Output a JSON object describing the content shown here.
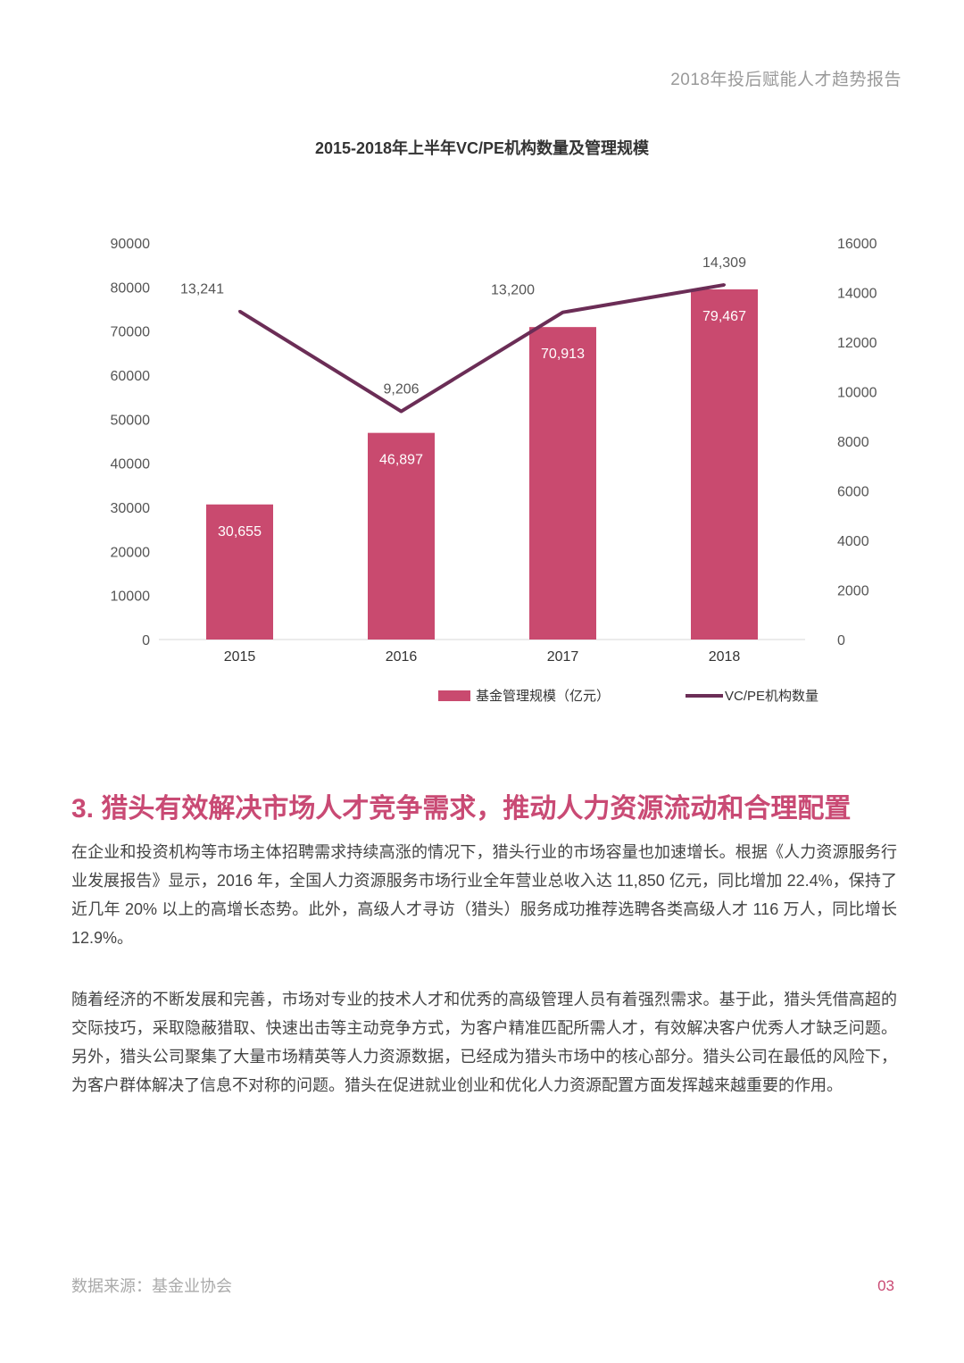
{
  "header": {
    "report_title": "2018年投后赋能人才趋势报告"
  },
  "chart_data": {
    "type": "bar",
    "title": "2015-2018年上半年VC/PE机构数量及管理规模",
    "categories": [
      "2015",
      "2016",
      "2017",
      "2018"
    ],
    "series": [
      {
        "name": "基金管理规模（亿元）",
        "type": "bar",
        "axis": "left",
        "values": [
          30655,
          46897,
          70913,
          79467
        ],
        "labels": [
          "30,655",
          "46,897",
          "70,913",
          "79,467"
        ]
      },
      {
        "name": "VC/PE机构数量",
        "type": "line",
        "axis": "right",
        "values": [
          13241,
          9206,
          13200,
          14309
        ],
        "labels": [
          "13,241",
          "9,206",
          "13,200",
          "14,309"
        ]
      }
    ],
    "ylim_left": [
      0,
      90000
    ],
    "yticks_left": [
      "0",
      "10000",
      "20000",
      "30000",
      "40000",
      "50000",
      "60000",
      "70000",
      "80000",
      "90000"
    ],
    "ylim_right": [
      0,
      16000
    ],
    "yticks_right": [
      "0",
      "2000",
      "4000",
      "6000",
      "8000",
      "10000",
      "12000",
      "14000",
      "16000"
    ],
    "legend_position": "bottom",
    "grid": false,
    "colors": {
      "bar": "#c94a6f",
      "line": "#6b2d56",
      "axis_text": "#555555"
    }
  },
  "section": {
    "heading": "3. 猎头有效解决市场人才竞争需求，推动人力资源流动和合理配置",
    "paragraph1": "在企业和投资机构等市场主体招聘需求持续高涨的情况下，猎头行业的市场容量也加速增长。根据《人力资源服务行业发展报告》显示，2016 年，全国人力资源服务市场行业全年营业总收入达 11,850 亿元，同比增加 22.4%，保持了近几年 20% 以上的高增长态势。此外，高级人才寻访（猎头）服务成功推荐选聘各类高级人才 116 万人，同比增长 12.9%。",
    "paragraph2": "随着经济的不断发展和完善，市场对专业的技术人才和优秀的高级管理人员有着强烈需求。基于此，猎头凭借高超的交际技巧，采取隐蔽猎取、快速出击等主动竞争方式，为客户精准匹配所需人才，有效解决客户优秀人才缺乏问题。另外，猎头公司聚集了大量市场精英等人力资源数据，已经成为猎头市场中的核心部分。猎头公司在最低的风险下，为客户群体解决了信息不对称的问题。猎头在促进就业创业和优化人力资源配置方面发挥越来越重要的作用。"
  },
  "footer": {
    "source": "数据来源：基金业协会",
    "page_number": "03"
  }
}
